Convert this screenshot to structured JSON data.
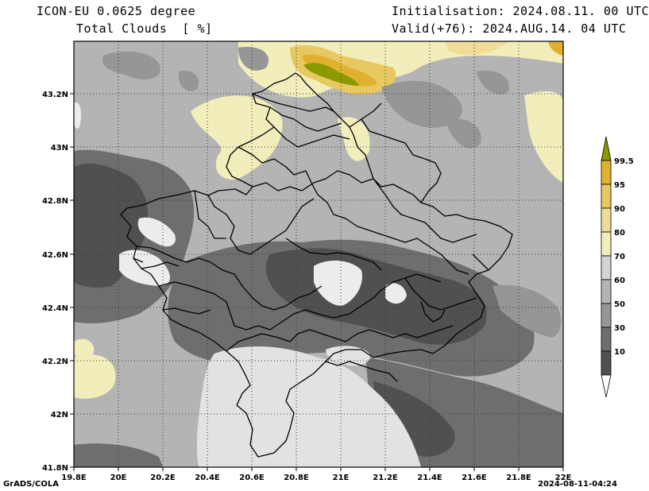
{
  "header": {
    "model": "ICON-EU 0.0625 degree",
    "variable": "Total Clouds  [ %]",
    "init": "Initialisation: 2024.08.11. 00 UTC",
    "valid": "Valid(+76): 2024.AUG.14. 04 UTC"
  },
  "axes": {
    "x_ticks": [
      "19.8E",
      "20E",
      "20.2E",
      "20.4E",
      "20.6E",
      "20.8E",
      "21E",
      "21.2E",
      "21.4E",
      "21.6E",
      "21.8E",
      "22E"
    ],
    "y_ticks": [
      "43.2N",
      "43N",
      "42.8N",
      "42.6N",
      "42.4N",
      "42.2N",
      "42N",
      "41.8N"
    ]
  },
  "legend": {
    "labels": [
      "99.5",
      "95",
      "90",
      "80",
      "70",
      "60",
      "50",
      "30",
      "10"
    ],
    "colors": [
      "#8b9a00",
      "#e0b030",
      "#e8c860",
      "#eedc98",
      "#f2eebc",
      "#d3d3d3",
      "#b4b4b4",
      "#969696",
      "#6e6e6e",
      "#505050",
      "#ffffff"
    ]
  },
  "footer": {
    "left": "GrADS/COLA",
    "right": "2024-08-11-04:24"
  }
}
